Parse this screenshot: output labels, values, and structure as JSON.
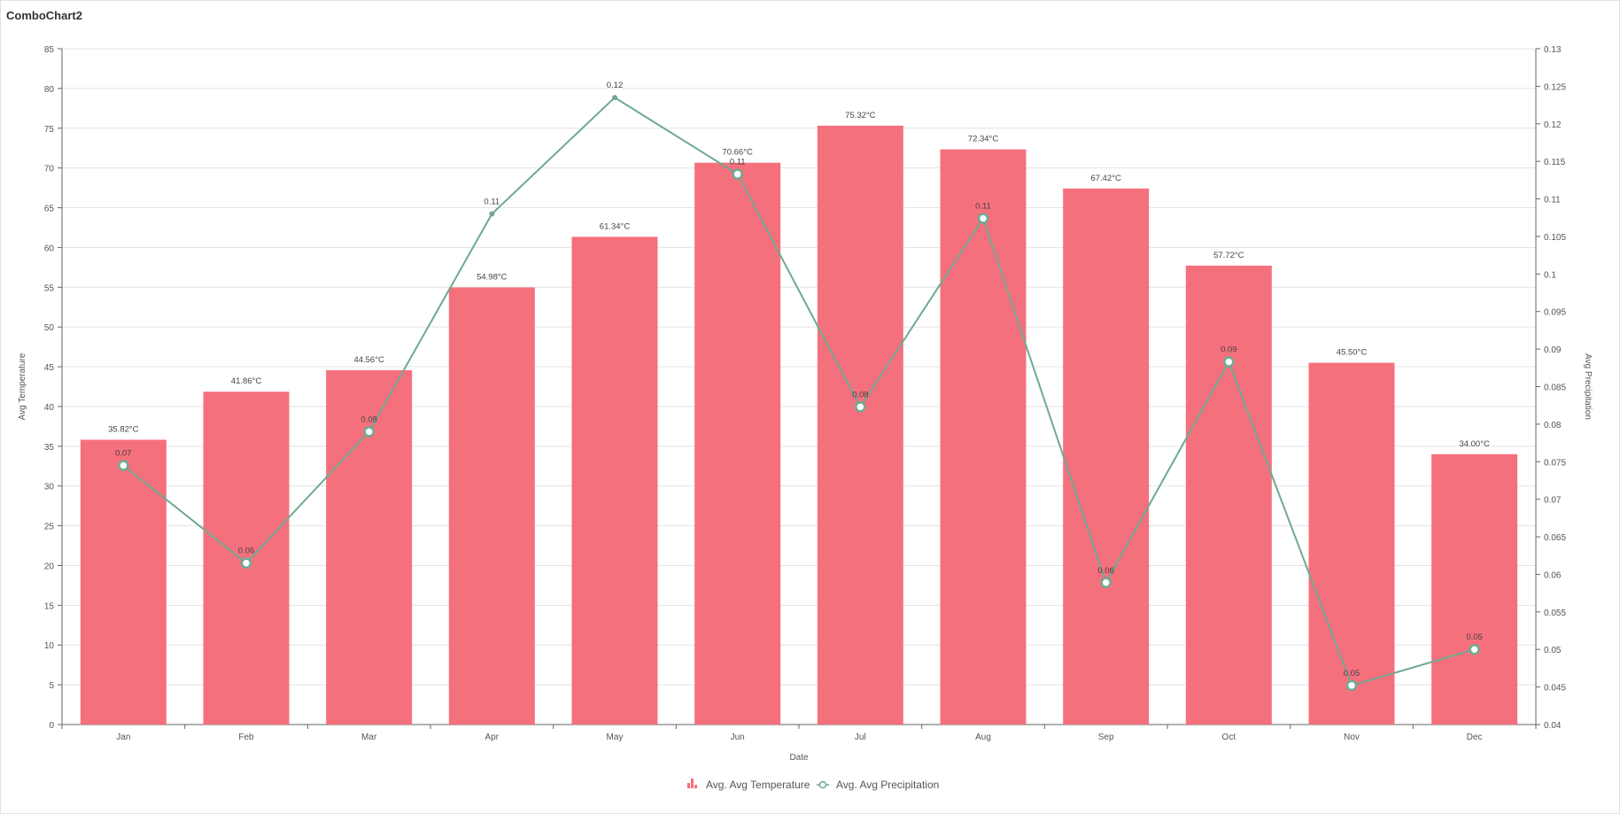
{
  "title": "ComboChart2",
  "colors": {
    "bar": "#f5707d",
    "line": "#6fa992",
    "grid": "#e3e3e3",
    "axis": "#666666",
    "text": "#555555"
  },
  "chart_data": {
    "type": "bar",
    "title": "ComboChart2",
    "xlabel": "Date",
    "ylabel": "Avg Temperature",
    "y2label": "Avg Precipitation",
    "categories": [
      "Jan",
      "Feb",
      "Mar",
      "Apr",
      "May",
      "Jun",
      "Jul",
      "Aug",
      "Sep",
      "Oct",
      "Nov",
      "Dec"
    ],
    "ylim": [
      0,
      85
    ],
    "yticks": [
      0,
      5,
      10,
      15,
      20,
      25,
      30,
      35,
      40,
      45,
      50,
      55,
      60,
      65,
      70,
      75,
      80,
      85
    ],
    "y2lim": [
      0.04,
      0.13
    ],
    "y2ticks": [
      "0.04",
      "0.045",
      "0.05",
      "0.055",
      "0.06",
      "0.065",
      "0.07",
      "0.075",
      "0.08",
      "0.085",
      "0.09",
      "0.095",
      "0.1",
      "0.105",
      "0.11",
      "0.115",
      "0.12",
      "0.125",
      "0.13"
    ],
    "grid": true,
    "legend_position": "bottom",
    "series": [
      {
        "name": "Avg. Avg Temperature",
        "type": "bar",
        "axis": "left",
        "values": [
          35.82,
          41.86,
          44.56,
          54.98,
          61.34,
          70.66,
          75.32,
          72.34,
          67.42,
          57.72,
          45.5,
          34.0
        ],
        "labels": [
          "35.82°C",
          "41.86°C",
          "44.56°C",
          "54.98°C",
          "61.34°C",
          "70.66°C",
          "75.32°C",
          "72.34°C",
          "67.42°C",
          "57.72°C",
          "45.50°C",
          "34.00°C"
        ]
      },
      {
        "name": "Avg. Avg Precipitation",
        "type": "line",
        "axis": "right",
        "values": [
          0.0745,
          0.0615,
          0.079,
          0.108,
          0.1235,
          0.1133,
          0.0823,
          0.1074,
          0.0589,
          0.0883,
          0.0452,
          0.05
        ],
        "labels": [
          "0.07",
          "0.06",
          "0.08",
          "0.11",
          "0.12",
          "0.11",
          "0.08",
          "0.11",
          "0.06",
          "0.09",
          "0.05",
          "0.05"
        ],
        "markers": [
          true,
          true,
          true,
          false,
          false,
          true,
          true,
          true,
          true,
          true,
          true,
          true
        ]
      }
    ]
  }
}
